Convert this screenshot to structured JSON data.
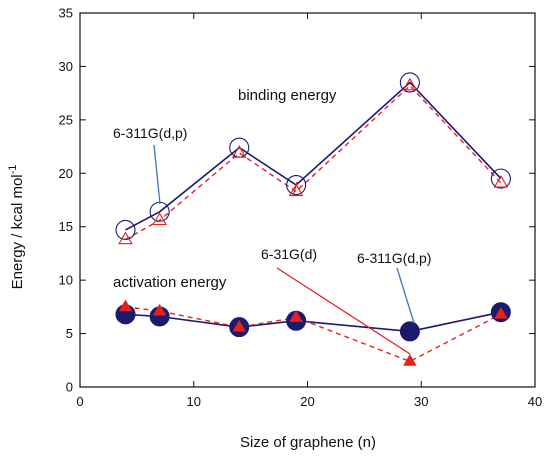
{
  "chart_data": {
    "type": "line",
    "xlabel": "Size of graphene (n)",
    "ylabel": "Energy / kcal mol",
    "ylabel_sup": "-1",
    "xlim": [
      0,
      40
    ],
    "ylim": [
      0,
      35
    ],
    "xticks": [
      0,
      10,
      20,
      30,
      40
    ],
    "yticks": [
      0,
      5,
      10,
      15,
      20,
      25,
      30,
      35
    ],
    "grid": false,
    "series": [
      {
        "name": "binding energy 6-311G(d,p)",
        "color": "#1a1a6e",
        "marker": "open-circle",
        "line": "solid",
        "x": [
          4,
          7,
          14,
          19,
          29,
          37
        ],
        "y": [
          14.7,
          16.4,
          22.4,
          18.9,
          28.5,
          19.5
        ]
      },
      {
        "name": "binding energy 6-31G(d)",
        "color": "#e8201a",
        "marker": "open-triangle",
        "line": "dashed",
        "x": [
          4,
          7,
          14,
          19,
          29,
          37
        ],
        "y": [
          13.8,
          15.6,
          21.9,
          18.3,
          28.2,
          19.1
        ]
      },
      {
        "name": "activation energy 6-311G(d,p)",
        "color": "#1a1a6e",
        "marker": "filled-circle",
        "line": "solid",
        "x": [
          4,
          7,
          14,
          19,
          29,
          37
        ],
        "y": [
          6.8,
          6.6,
          5.6,
          6.2,
          5.2,
          7.0
        ]
      },
      {
        "name": "activation energy 6-31G(d)",
        "color": "#e8201a",
        "marker": "filled-triangle",
        "line": "dashed",
        "x": [
          4,
          7,
          14,
          19,
          29,
          37
        ],
        "y": [
          7.5,
          7.1,
          5.6,
          6.5,
          2.4,
          6.8
        ]
      }
    ],
    "annotations": {
      "binding_energy": "binding energy",
      "activation_energy": "activation energy",
      "basis_311_upper": "6-311G(d,p)",
      "basis_31": "6-31G(d)",
      "basis_311_lower": "6-311G(d,p)"
    }
  }
}
